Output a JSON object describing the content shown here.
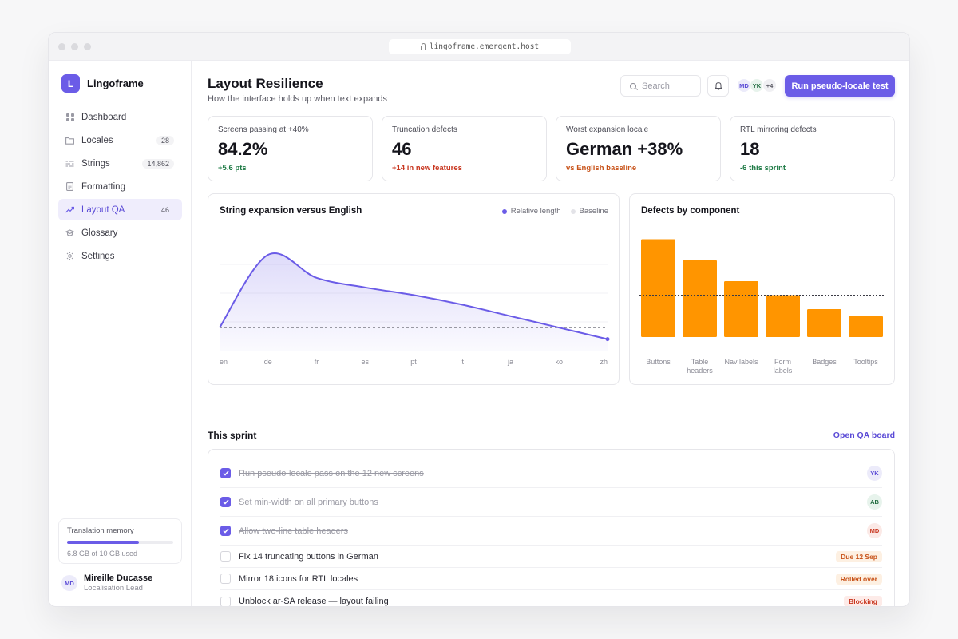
{
  "browser": {
    "url": "lingoframe.emergent.host"
  },
  "brand": {
    "logo_letter": "L",
    "name": "Lingoframe"
  },
  "sidebar": {
    "items": [
      {
        "label": "Dashboard",
        "badge": "",
        "icon": "grid-icon"
      },
      {
        "label": "Locales",
        "badge": "28",
        "icon": "folder-icon"
      },
      {
        "label": "Strings",
        "badge": "14,862",
        "icon": "strings-icon"
      },
      {
        "label": "Formatting",
        "badge": "",
        "icon": "document-icon"
      },
      {
        "label": "Layout QA",
        "badge": "46",
        "icon": "trend-icon",
        "active": true
      },
      {
        "label": "Glossary",
        "badge": "",
        "icon": "graduation-icon"
      },
      {
        "label": "Settings",
        "badge": "",
        "icon": "gear-icon"
      }
    ],
    "memory": {
      "title": "Translation memory",
      "used_fraction": 0.68,
      "caption": "6.8 GB of 10 GB used"
    },
    "user": {
      "initials": "MD",
      "name": "Mireille Ducasse",
      "role": "Localisation Lead"
    }
  },
  "header": {
    "title": "Layout Resilience",
    "subtitle": "How the interface holds up when text expands",
    "search_placeholder": "Search",
    "collaborators": [
      "MD",
      "YK"
    ],
    "collaborators_more": "+4",
    "run_button": "Run pseudo-locale test"
  },
  "stats": [
    {
      "label": "Screens passing at +40%",
      "value": "84.2%",
      "delta": "+5.6 pts",
      "tone": "good"
    },
    {
      "label": "Truncation defects",
      "value": "46",
      "delta": "+14 in new features",
      "tone": "bad"
    },
    {
      "label": "Worst expansion locale",
      "value": "German +38%",
      "delta": "vs English baseline",
      "tone": "warn"
    },
    {
      "label": "RTL mirroring defects",
      "value": "18",
      "delta": "-6 this sprint",
      "tone": "good"
    }
  ],
  "colors": {
    "accent": "#6b5ce7",
    "bar": "#ff9500",
    "good": "#1e7a45",
    "bad": "#c8361f"
  },
  "chart_data": [
    {
      "type": "area",
      "title": "String expansion versus English",
      "legend": [
        "Relative length",
        "Baseline"
      ],
      "categories": [
        "en",
        "de",
        "fr",
        "es",
        "pt",
        "it",
        "ja",
        "ko",
        "zh"
      ],
      "series": [
        {
          "name": "Relative length",
          "values": [
            100,
            138,
            126,
            121,
            117,
            112,
            106,
            100,
            94
          ]
        },
        {
          "name": "Baseline",
          "values": [
            100,
            100,
            100,
            100,
            100,
            100,
            100,
            100,
            100
          ]
        }
      ],
      "ylim": [
        88,
        148
      ],
      "grid": true
    },
    {
      "type": "bar",
      "title": "Defects by component",
      "categories": [
        "Buttons",
        "Table headers",
        "Nav labels",
        "Form labels",
        "Badges",
        "Tooltips"
      ],
      "values": [
        14,
        11,
        8,
        6,
        4,
        3
      ],
      "reference_line": 6,
      "ylim": [
        0,
        16
      ]
    }
  ],
  "sprint": {
    "title": "This sprint",
    "link": "Open QA board",
    "tasks": [
      {
        "text": "Run pseudo-locale pass on the 12 new screens",
        "done": true,
        "assignee": "YK"
      },
      {
        "text": "Set min-width on all primary buttons",
        "done": true,
        "assignee": "AB"
      },
      {
        "text": "Allow two-line table headers",
        "done": true,
        "assignee": "MD"
      },
      {
        "text": "Fix 14 truncating buttons in German",
        "done": false,
        "badge": "Due 12 Sep"
      },
      {
        "text": "Mirror 18 icons for RTL locales",
        "done": false,
        "badge": "Rolled over"
      },
      {
        "text": "Unblock ar-SA release — layout failing",
        "done": false,
        "badge": "Blocking"
      }
    ]
  }
}
